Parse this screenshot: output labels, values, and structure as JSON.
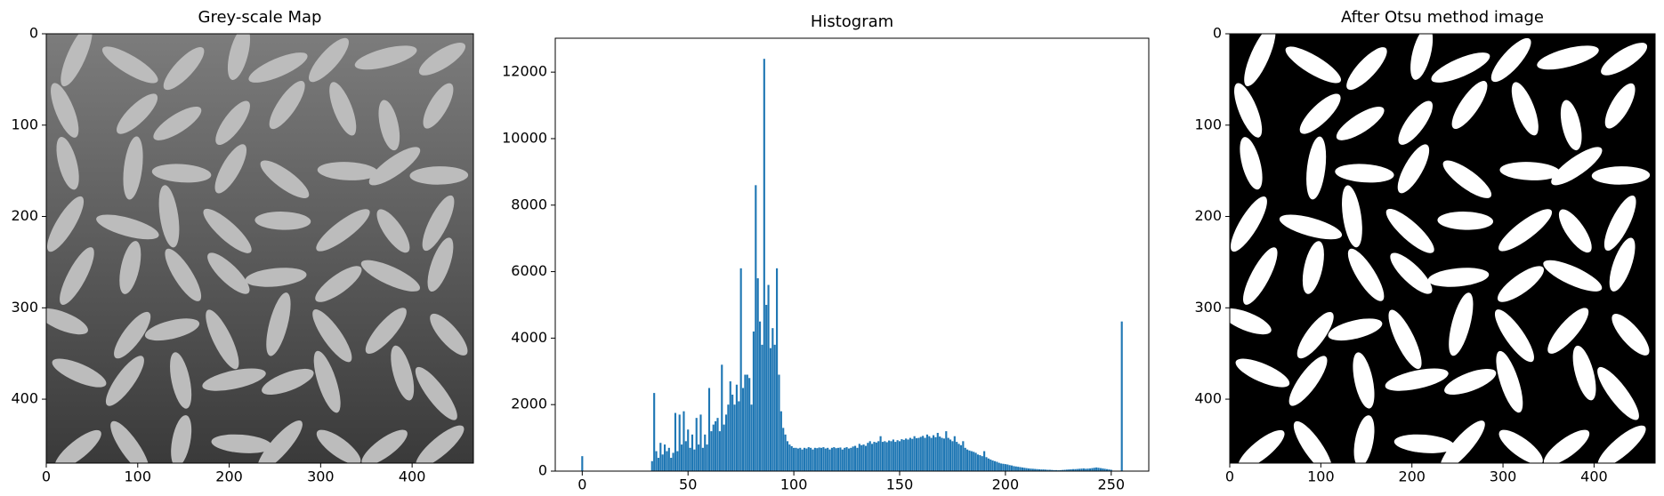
{
  "chart_data": [
    {
      "type": "image",
      "title": "Grey-scale Map",
      "xlim": [
        0,
        467
      ],
      "ylim": [
        470,
        0
      ],
      "xticks": [
        0,
        100,
        200,
        300,
        400
      ],
      "yticks": [
        0,
        100,
        200,
        300,
        400
      ]
    },
    {
      "type": "bar",
      "title": "Histogram",
      "color": "#1f77b4",
      "xlim": [
        -12.75,
        267.75
      ],
      "ylim": [
        0,
        13020
      ],
      "xticks": [
        0,
        50,
        100,
        150,
        200,
        250
      ],
      "yticks": [
        0,
        2000,
        4000,
        6000,
        8000,
        10000,
        12000
      ],
      "x": [
        0,
        33,
        34,
        35,
        36,
        37,
        38,
        39,
        40,
        41,
        42,
        43,
        44,
        45,
        46,
        47,
        48,
        49,
        50,
        51,
        52,
        53,
        54,
        55,
        56,
        57,
        58,
        59,
        60,
        61,
        62,
        63,
        64,
        65,
        66,
        67,
        68,
        69,
        70,
        71,
        72,
        73,
        74,
        75,
        76,
        77,
        78,
        79,
        80,
        81,
        82,
        83,
        84,
        85,
        86,
        87,
        88,
        89,
        90,
        91,
        92,
        93,
        94,
        95,
        96,
        97,
        98,
        99,
        100,
        101,
        102,
        103,
        104,
        105,
        106,
        107,
        108,
        109,
        110,
        111,
        112,
        113,
        114,
        115,
        116,
        117,
        118,
        119,
        120,
        121,
        122,
        123,
        124,
        125,
        126,
        127,
        128,
        129,
        130,
        131,
        132,
        133,
        134,
        135,
        136,
        137,
        138,
        139,
        140,
        141,
        142,
        143,
        144,
        145,
        146,
        147,
        148,
        149,
        150,
        151,
        152,
        153,
        154,
        155,
        156,
        157,
        158,
        159,
        160,
        161,
        162,
        163,
        164,
        165,
        166,
        167,
        168,
        169,
        170,
        171,
        172,
        173,
        174,
        175,
        176,
        177,
        178,
        179,
        180,
        181,
        182,
        183,
        184,
        185,
        186,
        187,
        188,
        189,
        190,
        191,
        192,
        193,
        194,
        195,
        196,
        197,
        198,
        199,
        200,
        201,
        202,
        203,
        204,
        205,
        206,
        207,
        208,
        209,
        210,
        211,
        212,
        213,
        214,
        215,
        216,
        217,
        218,
        219,
        220,
        221,
        222,
        223,
        224,
        225,
        226,
        227,
        228,
        229,
        230,
        231,
        232,
        233,
        234,
        235,
        236,
        237,
        238,
        239,
        240,
        241,
        242,
        243,
        244,
        245,
        246,
        247,
        248,
        249,
        250,
        255
      ],
      "values": [
        450,
        300,
        2350,
        600,
        400,
        850,
        500,
        800,
        600,
        700,
        400,
        550,
        1750,
        600,
        1700,
        800,
        1800,
        900,
        1250,
        700,
        1100,
        650,
        1600,
        800,
        1700,
        700,
        1100,
        800,
        2500,
        1200,
        1400,
        1500,
        1600,
        1200,
        3200,
        1400,
        1700,
        2000,
        2700,
        2300,
        2000,
        2600,
        2100,
        6100,
        2500,
        2900,
        2900,
        2800,
        2000,
        4200,
        8600,
        5800,
        4500,
        3800,
        12400,
        5000,
        5600,
        3700,
        4300,
        3800,
        6100,
        2900,
        1800,
        1300,
        1100,
        900,
        800,
        750,
        700,
        700,
        680,
        700,
        650,
        700,
        680,
        720,
        700,
        650,
        700,
        690,
        710,
        700,
        720,
        680,
        700,
        650,
        700,
        720,
        690,
        700,
        710,
        650,
        700,
        720,
        680,
        700,
        740,
        760,
        700,
        820,
        780,
        800,
        760,
        850,
        900,
        820,
        880,
        860,
        900,
        1050,
        880,
        900,
        870,
        920,
        900,
        950,
        880,
        930,
        900,
        960,
        940,
        980,
        950,
        1000,
        970,
        1050,
        990,
        1000,
        1030,
        1060,
        1000,
        1100,
        1050,
        1000,
        1080,
        1020,
        1150,
        1040,
        1000,
        980,
        1200,
        1000,
        950,
        900,
        1050,
        880,
        820,
        780,
        900,
        700,
        650,
        620,
        600,
        580,
        550,
        500,
        480,
        450,
        600,
        420,
        380,
        350,
        320,
        300,
        280,
        250,
        230,
        220,
        210,
        200,
        180,
        170,
        150,
        140,
        130,
        120,
        110,
        100,
        90,
        80,
        75,
        70,
        65,
        60,
        55,
        50,
        50,
        45,
        40,
        40,
        35,
        30,
        30,
        25,
        30,
        35,
        40,
        45,
        50,
        55,
        60,
        60,
        65,
        70,
        75,
        80,
        70,
        75,
        80,
        90,
        100,
        110,
        100,
        90,
        80,
        70,
        60,
        50,
        40,
        4500
      ]
    },
    {
      "type": "image",
      "title": "After Otsu method image",
      "xlim": [
        0,
        467
      ],
      "ylim": [
        470,
        0
      ],
      "xticks": [
        0,
        100,
        200,
        300,
        400
      ],
      "yticks": [
        0,
        100,
        200,
        300,
        400
      ]
    }
  ]
}
